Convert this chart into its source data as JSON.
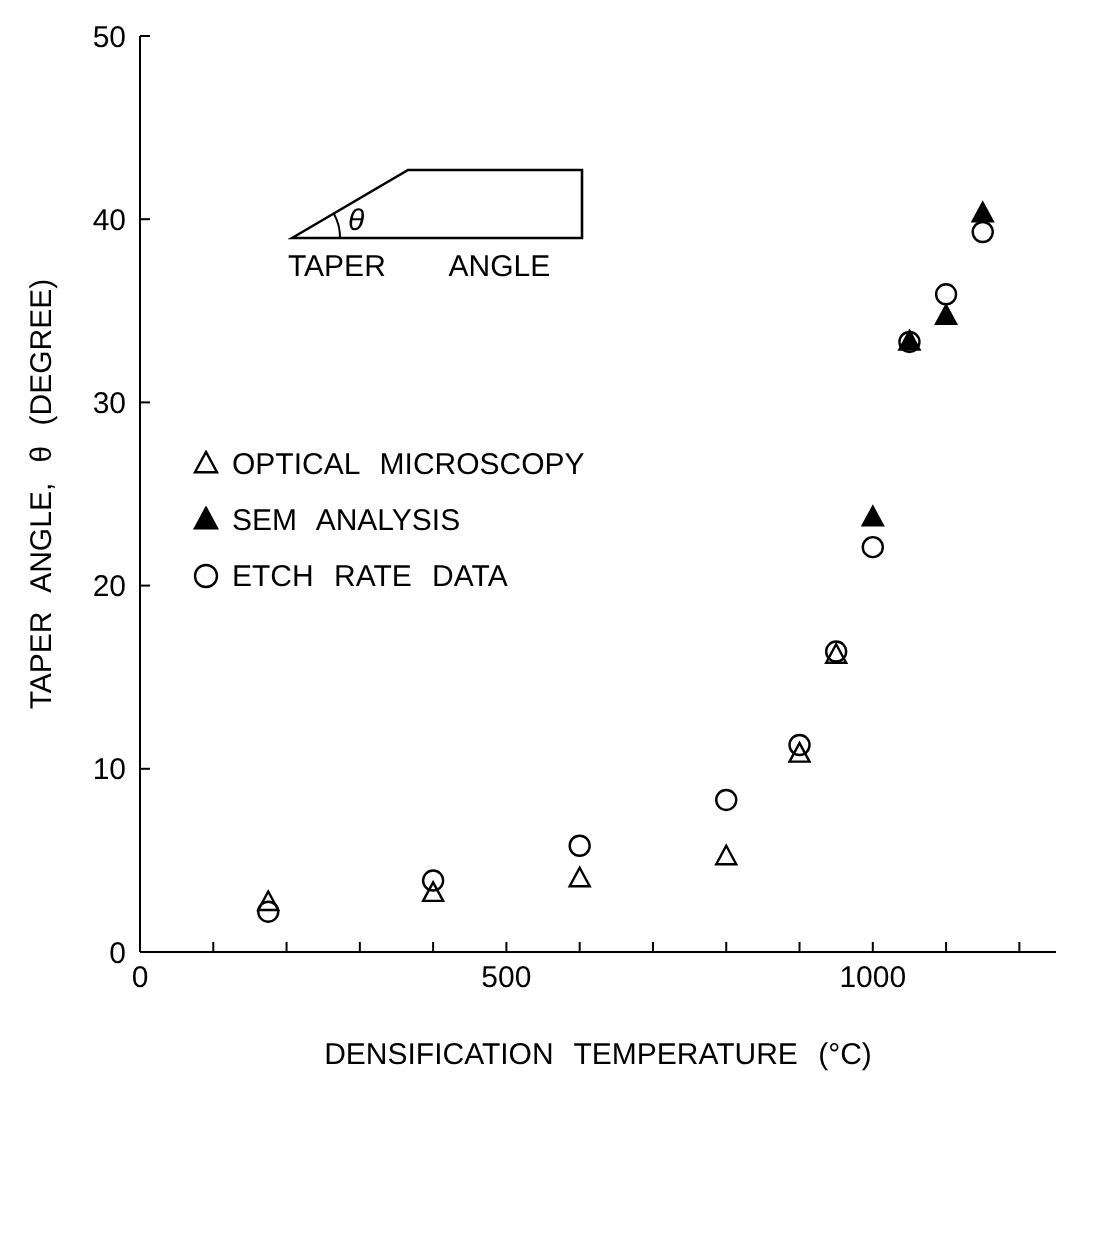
{
  "chart_data": {
    "type": "scatter",
    "xlabel": "DENSIFICATION TEMPERATURE (°C)",
    "ylabel": "TAPER ANGLE, θ (DEGREE)",
    "xlim": [
      0,
      1250
    ],
    "xticks": [
      0,
      {
        "value": 100,
        "label": null
      },
      {
        "value": 200,
        "label": null
      },
      {
        "value": 300,
        "label": null
      },
      {
        "value": 400,
        "label": null
      },
      500,
      {
        "value": 600,
        "label": null
      },
      {
        "value": 700,
        "label": null
      },
      {
        "value": 800,
        "label": null
      },
      {
        "value": 900,
        "label": null
      },
      1000,
      {
        "value": 1100,
        "label": null
      },
      {
        "value": 1200,
        "label": null
      }
    ],
    "ylim": [
      0,
      50
    ],
    "yticks": [
      0,
      10,
      20,
      30,
      40,
      50
    ],
    "grid": false,
    "legend": "left",
    "annotations": [
      "θ",
      "TAPER ANGLE"
    ],
    "series": [
      {
        "name": "OPTICAL MICROSCOPY",
        "marker": "triangle",
        "color": "#000000",
        "x": [
          175,
          400,
          600,
          800,
          900,
          950
        ],
        "values": [
          2.7,
          3.2,
          4.0,
          5.2,
          10.8,
          16.2
        ]
      },
      {
        "name": "SEM ANALYSIS",
        "marker": "triangle",
        "color": "#000000",
        "x": [
          1000,
          1050,
          1100,
          1150
        ],
        "values": [
          23.7,
          33.3,
          34.7,
          40.3
        ]
      },
      {
        "name": "ETCH RATE DATA",
        "marker": "circle",
        "color": "#000000",
        "x": [
          175,
          400,
          600,
          800,
          900,
          950,
          1000,
          1050,
          1100,
          1150
        ],
        "values": [
          2.2,
          3.9,
          5.8,
          8.3,
          11.3,
          16.4,
          22.1,
          33.3,
          35.9,
          39.3
        ]
      }
    ]
  }
}
